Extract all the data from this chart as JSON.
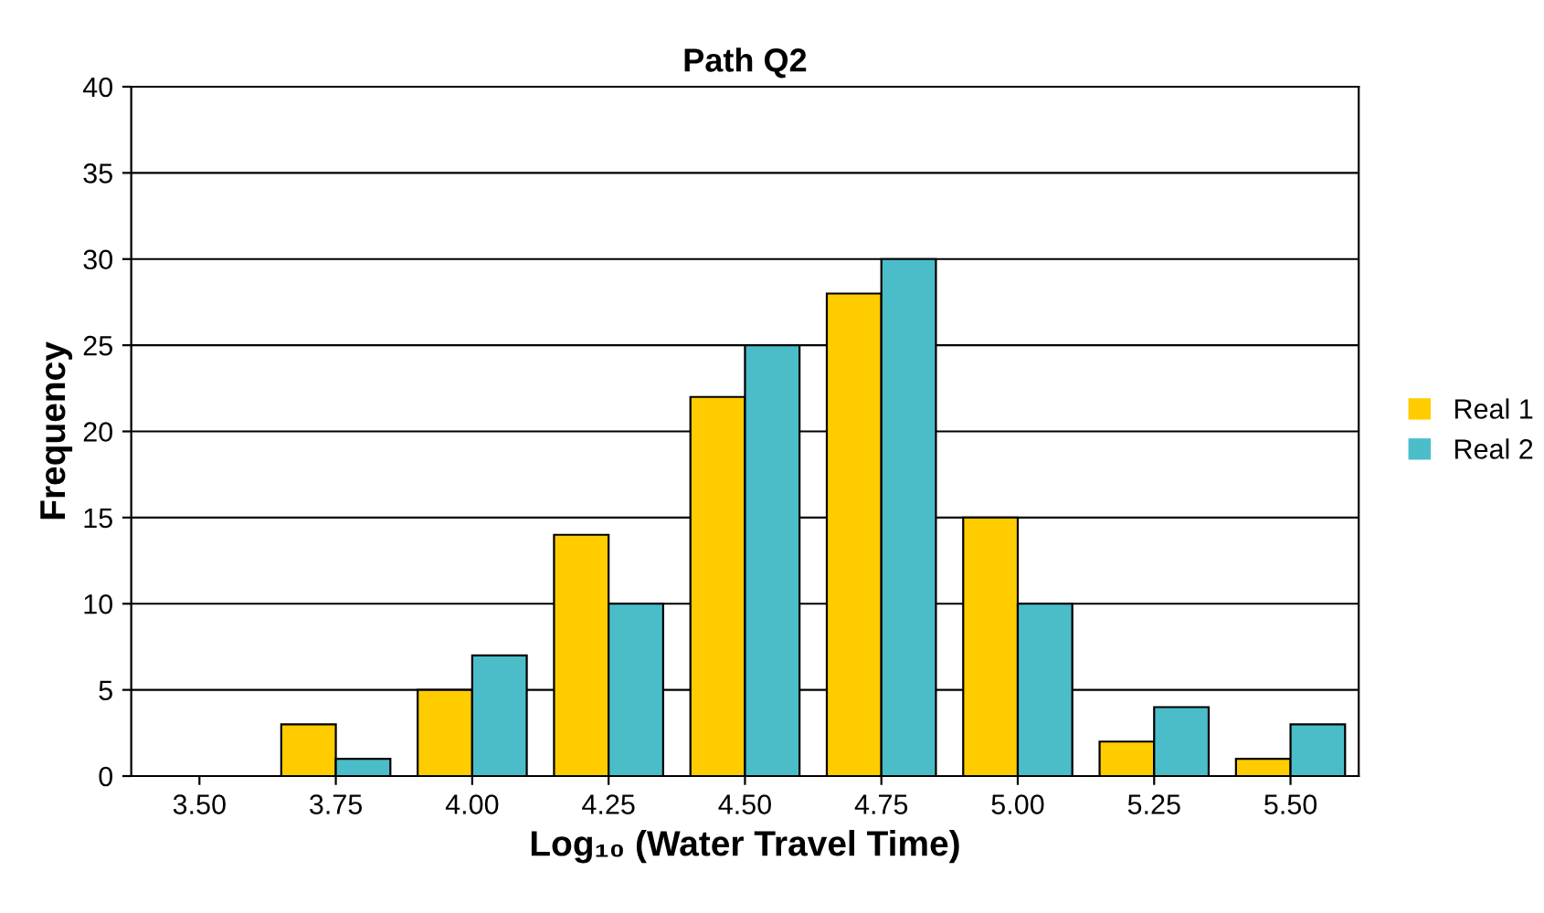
{
  "chart_data": {
    "type": "bar",
    "title": "Path Q2",
    "xlabel": "Log₁₀ (Water Travel Time)",
    "ylabel": "Frequency",
    "categories": [
      "3.50",
      "3.75",
      "4.00",
      "4.25",
      "4.50",
      "4.75",
      "5.00",
      "5.25",
      "5.50"
    ],
    "series": [
      {
        "name": "Real 1",
        "color": "#ffcc00",
        "values": [
          0,
          3,
          5,
          14,
          22,
          28,
          15,
          2,
          1
        ]
      },
      {
        "name": "Real 2",
        "color": "#4bbdc8",
        "values": [
          0,
          1,
          7,
          10,
          25,
          30,
          10,
          4,
          3
        ]
      }
    ],
    "ylim": [
      0,
      40
    ],
    "yticks": [
      0,
      5,
      10,
      15,
      20,
      25,
      30,
      35,
      40
    ],
    "grid": "y",
    "legend": "right"
  }
}
